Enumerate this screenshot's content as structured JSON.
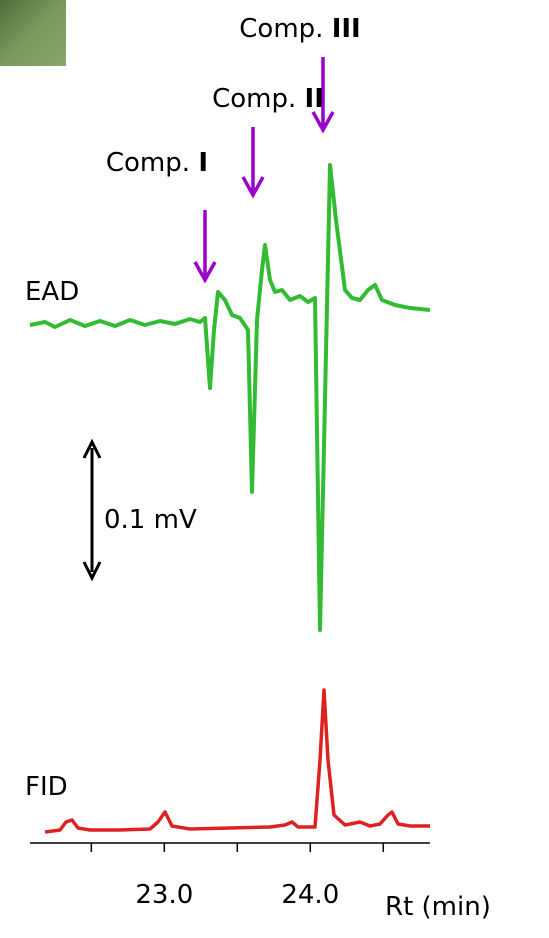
{
  "labels": {
    "ead": "EAD",
    "fid": "FID",
    "scale": "0.1 mV"
  },
  "compounds": [
    {
      "prefix": "Comp.",
      "numeral": "I"
    },
    {
      "prefix": "Comp.",
      "numeral": "II"
    },
    {
      "prefix": "Comp.",
      "numeral": "III"
    }
  ],
  "x_axis": {
    "label": "Rt  (min)",
    "xlim": [
      22.08,
      24.82
    ],
    "xticks": [
      {
        "value": 23,
        "label": "23.0"
      },
      {
        "value": 24,
        "label": "24.0"
      }
    ],
    "minor_ticks": [
      22.5,
      23.5,
      24.5
    ]
  }
}
